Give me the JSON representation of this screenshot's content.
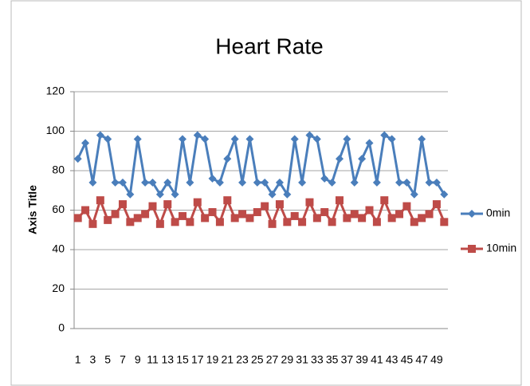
{
  "chart_data": {
    "type": "line",
    "title": "Heart Rate",
    "y_label": "Axis Title",
    "categories": [
      1,
      null,
      3,
      null,
      5,
      null,
      7,
      null,
      9,
      null,
      11,
      null,
      13,
      null,
      15,
      null,
      17,
      null,
      19,
      null,
      21,
      null,
      23,
      null,
      25,
      null,
      27,
      null,
      29,
      null,
      31,
      null,
      33,
      null,
      35,
      null,
      37,
      null,
      39,
      null,
      41,
      null,
      43,
      null,
      45,
      null,
      47,
      null,
      49,
      null
    ],
    "series": [
      {
        "name": "0min",
        "color": "#4a7ebb",
        "marker": "diamond",
        "values": [
          86,
          94,
          74,
          98,
          96,
          74,
          74,
          68,
          96,
          74,
          74,
          68,
          74,
          68,
          96,
          74,
          98,
          96,
          76,
          74,
          86,
          96,
          74,
          96,
          74,
          74,
          68,
          74,
          68,
          96,
          74,
          98,
          96,
          76,
          74,
          86,
          96,
          74,
          86,
          94,
          74,
          98,
          96,
          74,
          74,
          68,
          96,
          74,
          74,
          68
        ]
      },
      {
        "name": "10min",
        "color": "#be4b48",
        "marker": "square",
        "values": [
          56,
          60,
          53,
          65,
          55,
          58,
          63,
          54,
          56,
          58,
          62,
          53,
          63,
          54,
          57,
          54,
          64,
          56,
          59,
          54,
          65,
          56,
          58,
          56,
          59,
          62,
          53,
          63,
          54,
          57,
          54,
          64,
          56,
          59,
          54,
          65,
          56,
          58,
          56,
          60,
          54,
          65,
          56,
          58,
          62,
          54,
          56,
          58,
          63,
          54
        ]
      }
    ],
    "ylim": [
      0,
      120
    ],
    "yticks": [
      0,
      20,
      40,
      60,
      80,
      100,
      120
    ],
    "grid": true,
    "legend": "right"
  }
}
